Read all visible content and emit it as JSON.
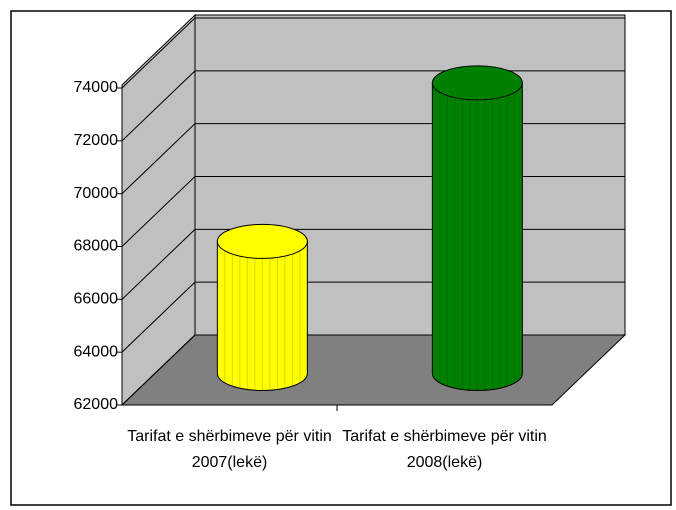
{
  "chart_data": {
    "type": "bar3d",
    "categories": [
      "Tarifat e shërbimeve për vitin 2007(lekë)",
      "Tarifat e shërbimeve për vitin 2008(lekë)"
    ],
    "series": [
      {
        "values": [
          67000,
          73000
        ],
        "colors": [
          "#ffff00",
          "#008000"
        ]
      }
    ],
    "ylim": [
      62000,
      74000
    ],
    "yticks": [
      62000,
      64000,
      66000,
      68000,
      70000,
      72000,
      74000
    ],
    "grid": true
  }
}
